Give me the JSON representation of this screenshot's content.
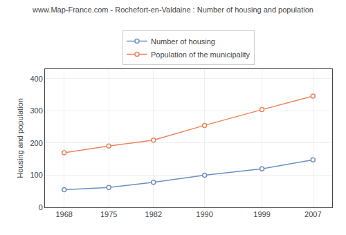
{
  "chart_data": {
    "type": "line",
    "title": "www.Map-France.com - Rochefort-en-Valdaine : Number of housing and population",
    "y_label": "Housing and population",
    "x": [
      1968,
      1975,
      1982,
      1990,
      1999,
      2007
    ],
    "series": [
      {
        "name": "Number of housing",
        "color": "#6d8fbf",
        "values": [
          55,
          62,
          78,
          100,
          120,
          148
        ]
      },
      {
        "name": "Population of the municipality",
        "color": "#e8845a",
        "values": [
          170,
          191,
          209,
          255,
          304,
          346
        ]
      }
    ],
    "xlim": [
      1965,
      2010
    ],
    "xticks": [
      1968,
      1975,
      1982,
      1990,
      1999,
      2007
    ],
    "ylim": [
      0,
      430
    ],
    "yticks": [
      0,
      100,
      200,
      300,
      400
    ],
    "grid": true,
    "legend": "top",
    "marker": "circle",
    "line_style": "solid"
  }
}
